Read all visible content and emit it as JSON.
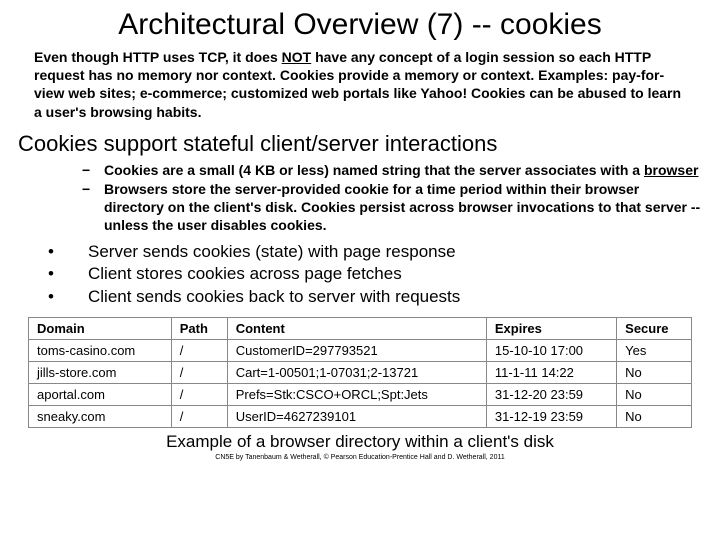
{
  "title": "Architectural Overview (7) -- cookies",
  "intro_pre": "Even though HTTP uses TCP, it does ",
  "intro_not": "NOT",
  "intro_post": " have any concept of a login session so each HTTP request has no memory nor context. Cookies provide a memory or context. Examples: pay-for-view web sites; e-commerce; customized web portals like Yahoo! Cookies can be abused to learn a user's browsing habits.",
  "subhead": "Cookies support stateful client/server interactions",
  "dash1_pre": "Cookies are a small (4 KB or less) named string that the server associates with a ",
  "dash1_ul": "browser",
  "dash2": "Browsers store the server-provided cookie for a time period within their browser directory on the client's disk.  Cookies persist across browser invocations to that server -- unless the user disables cookies.",
  "b1": "Server sends cookies (state) with page response",
  "b2": "Client stores cookies across page fetches",
  "b3": "Client sends cookies back to server with requests",
  "cols": {
    "c0": "Domain",
    "c1": "Path",
    "c2": "Content",
    "c3": "Expires",
    "c4": "Secure"
  },
  "r0": {
    "c0": "toms-casino.com",
    "c1": "/",
    "c2": "CustomerID=297793521",
    "c3": "15-10-10 17:00",
    "c4": "Yes"
  },
  "r1": {
    "c0": "jills-store.com",
    "c1": "/",
    "c2": "Cart=1-00501;1-07031;2-13721",
    "c3": "11-1-11 14:22",
    "c4": "No"
  },
  "r2": {
    "c0": "aportal.com",
    "c1": "/",
    "c2": "Prefs=Stk:CSCO+ORCL;Spt:Jets",
    "c3": "31-12-20 23:59",
    "c4": "No"
  },
  "r3": {
    "c0": "sneaky.com",
    "c1": "/",
    "c2": "UserID=4627239101",
    "c3": "31-12-19 23:59",
    "c4": "No"
  },
  "caption": "Example of a browser directory within a client's disk",
  "credit": "CN5E by Tanenbaum & Wetherall, © Pearson Education-Prentice Hall and D. Wetherall, 2011"
}
